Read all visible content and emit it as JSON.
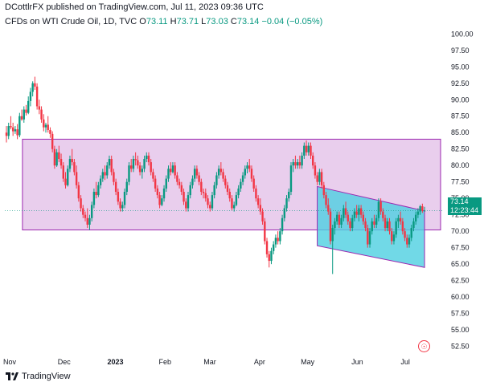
{
  "header": {
    "published_line": "DCottlrFX published on TradingView.com, Jul 11, 2023 09:36 UTC"
  },
  "legend": {
    "symbol": "CFDs on WTI Crude Oil, 1D, TVC",
    "open_label": "O",
    "open_value": "73.11",
    "high_label": "H",
    "high_value": "73.71",
    "low_label": "L",
    "low_value": "73.03",
    "close_label": "C",
    "close_value": "73.14",
    "change": "−0.04 (−0.05%)"
  },
  "price_badge": {
    "price": "73.14",
    "countdown": "12:23:44"
  },
  "footer": {
    "brand": "TradingView"
  },
  "colors": {
    "up": "#089981",
    "down": "#f23645",
    "range_box_fill": "#e1bee7",
    "range_box_stroke": "#9c27b0",
    "channel_fill": "#4dd0e1",
    "channel_stroke": "#9c27b0"
  },
  "chart_data": {
    "type": "candlestick",
    "y_axis_ticks": [
      "100.00",
      "97.50",
      "95.00",
      "92.50",
      "90.00",
      "87.50",
      "85.00",
      "82.50",
      "80.00",
      "77.50",
      "75.00",
      "72.50",
      "70.00",
      "67.50",
      "65.00",
      "62.50",
      "60.00",
      "57.50",
      "55.00",
      "52.50"
    ],
    "x_axis_ticks": [
      "Nov",
      "Dec",
      "2023",
      "Feb",
      "Mar",
      "Apr",
      "May",
      "Jun",
      "Jul"
    ],
    "ylim": [
      50.5,
      101.5
    ],
    "x_range_days": [
      0,
      272
    ],
    "current_price": 73.14,
    "range_box": {
      "x0_day": 11,
      "x1_day": 272,
      "top": 84.0,
      "bottom": 70.2
    },
    "channel": {
      "x0_day": 195,
      "x1_day": 262,
      "upper_start": 76.8,
      "upper_end": 73.1,
      "lower_start": 67.8,
      "lower_end": 64.5
    },
    "candles": [
      [
        0,
        85,
        86,
        83.5,
        84.5
      ],
      [
        1,
        84.5,
        86.5,
        84,
        86
      ],
      [
        2,
        86,
        87.5,
        85.5,
        85.8
      ],
      [
        3,
        85.8,
        86.5,
        84.5,
        85.2
      ],
      [
        4,
        85.2,
        86,
        84.8,
        85.5
      ],
      [
        5,
        85.5,
        86.3,
        84,
        84.6
      ],
      [
        6,
        84.6,
        88,
        84.3,
        87.5
      ],
      [
        7,
        87.5,
        88.5,
        86.8,
        87
      ],
      [
        8,
        87,
        89,
        86.5,
        88.5
      ],
      [
        9,
        88.5,
        89.2,
        87.6,
        88
      ],
      [
        10,
        88,
        90.5,
        87.8,
        89.8
      ],
      [
        11,
        89.8,
        91.8,
        89,
        91.2
      ],
      [
        12,
        91.2,
        92.8,
        90.5,
        92.5
      ],
      [
        13,
        92.5,
        93.5,
        91.5,
        92
      ],
      [
        14,
        92,
        92.5,
        88.5,
        89
      ],
      [
        15,
        89,
        90,
        87.8,
        88.5
      ],
      [
        16,
        88.5,
        89,
        86.5,
        87
      ],
      [
        17,
        87,
        87.8,
        85.2,
        85.8
      ],
      [
        18,
        85.8,
        86.5,
        85,
        86.2
      ],
      [
        19,
        86.2,
        87.5,
        85,
        85.4
      ],
      [
        20,
        85.4,
        85.8,
        84.2,
        84.8
      ],
      [
        21,
        84.8,
        85.2,
        82,
        82.5
      ],
      [
        22,
        82.5,
        83,
        79.5,
        80
      ],
      [
        23,
        80,
        82.5,
        79.8,
        82
      ],
      [
        24,
        82,
        83,
        80.5,
        81
      ],
      [
        25,
        81,
        81.8,
        79.5,
        80
      ],
      [
        26,
        80,
        80.5,
        77.5,
        78
      ],
      [
        27,
        78,
        79,
        76.5,
        77
      ],
      [
        28,
        77,
        80,
        76.8,
        79.5
      ],
      [
        29,
        79.5,
        81.5,
        79,
        81
      ],
      [
        30,
        81,
        82.5,
        80,
        80.5
      ],
      [
        31,
        80.5,
        81,
        78.5,
        79
      ],
      [
        32,
        79,
        80,
        76.5,
        77
      ],
      [
        33,
        77,
        77.5,
        74.5,
        75
      ],
      [
        34,
        75,
        75.5,
        73,
        73.5
      ],
      [
        35,
        73.5,
        74,
        72,
        72.5
      ],
      [
        36,
        72.5,
        73,
        71.5,
        72
      ],
      [
        37,
        72,
        73.5,
        70.5,
        71
      ],
      [
        38,
        71,
        72.5,
        70.2,
        72
      ],
      [
        39,
        72,
        74.5,
        71.5,
        74
      ],
      [
        40,
        74,
        76.5,
        73.5,
        76
      ],
      [
        41,
        76,
        77.5,
        75,
        75.5
      ],
      [
        42,
        75.5,
        77.5,
        75.2,
        77
      ],
      [
        43,
        77,
        78.5,
        76.5,
        78
      ],
      [
        44,
        78,
        79.5,
        77.5,
        79
      ],
      [
        45,
        79,
        80,
        77.8,
        78.5
      ],
      [
        46,
        78.5,
        80.5,
        78,
        80
      ],
      [
        47,
        80,
        81.5,
        79.5,
        81
      ],
      [
        48,
        81,
        81.5,
        78.5,
        79
      ],
      [
        49,
        79,
        79.5,
        77,
        77.5
      ],
      [
        50,
        77.5,
        78,
        75.5,
        76
      ],
      [
        51,
        76,
        76.5,
        74,
        74.5
      ],
      [
        52,
        74.5,
        75,
        73,
        73.5
      ],
      [
        53,
        73.5,
        74.5,
        73,
        74
      ],
      [
        54,
        74,
        76.5,
        73.5,
        76
      ],
      [
        55,
        76,
        78,
        75.5,
        77.5
      ],
      [
        56,
        77.5,
        80.5,
        77,
        80
      ],
      [
        57,
        80,
        81,
        79,
        79.5
      ],
      [
        58,
        79.5,
        81.5,
        79,
        81
      ],
      [
        59,
        81,
        82,
        80,
        80.8
      ],
      [
        60,
        80.8,
        81.5,
        79.5,
        80
      ],
      [
        61,
        80,
        80.5,
        78.5,
        79
      ],
      [
        62,
        79,
        80,
        78,
        79.5
      ],
      [
        63,
        79.5,
        81.5,
        79,
        81
      ],
      [
        64,
        81,
        82,
        80.5,
        81.5
      ],
      [
        65,
        81.5,
        82,
        80,
        80.5
      ],
      [
        66,
        80.5,
        81,
        78.5,
        79
      ],
      [
        67,
        79,
        79.5,
        77.5,
        78
      ],
      [
        68,
        78,
        78.5,
        76,
        76.5
      ],
      [
        69,
        76.5,
        77,
        75,
        75.5
      ],
      [
        70,
        75.5,
        76,
        73.5,
        74
      ],
      [
        71,
        74,
        75.5,
        73.8,
        75
      ],
      [
        72,
        75,
        77,
        74.5,
        76.5
      ],
      [
        73,
        76.5,
        78.5,
        76,
        78
      ],
      [
        74,
        78,
        80,
        77.5,
        79.5
      ],
      [
        75,
        79.5,
        80.5,
        78.5,
        79
      ],
      [
        76,
        79,
        80.5,
        78.8,
        80
      ],
      [
        77,
        80,
        80.5,
        78,
        78.5
      ],
      [
        78,
        78.5,
        79,
        77,
        77.5
      ],
      [
        79,
        77.5,
        78,
        76.5,
        77
      ],
      [
        80,
        77,
        77.5,
        75.5,
        76
      ],
      [
        81,
        76,
        76.5,
        74,
        74.5
      ],
      [
        82,
        74.5,
        75,
        73,
        73.5
      ],
      [
        83,
        73.5,
        76,
        73,
        75.5
      ],
      [
        84,
        75.5,
        77.5,
        75,
        77
      ],
      [
        85,
        77,
        78.5,
        76.5,
        78
      ],
      [
        86,
        78,
        80,
        77.5,
        79.5
      ],
      [
        87,
        79.5,
        80,
        78,
        78.5
      ],
      [
        88,
        78.5,
        79,
        77,
        77.5
      ],
      [
        89,
        77.5,
        78,
        75.5,
        76
      ],
      [
        90,
        76,
        76.5,
        75,
        75.8
      ],
      [
        91,
        75.8,
        76.5,
        74.5,
        75
      ],
      [
        92,
        75,
        75.5,
        73.5,
        74
      ],
      [
        93,
        74,
        74.5,
        73,
        73.5
      ],
      [
        94,
        73.5,
        76,
        73.2,
        75.5
      ],
      [
        95,
        75.5,
        77.5,
        75,
        77
      ],
      [
        96,
        77,
        79,
        76.5,
        78.5
      ],
      [
        97,
        78.5,
        80,
        78,
        79.5
      ],
      [
        98,
        79.5,
        80.5,
        78.5,
        79
      ],
      [
        99,
        79,
        79.5,
        77.5,
        78
      ],
      [
        100,
        78,
        78.5,
        76.5,
        77
      ],
      [
        101,
        77,
        77.5,
        75.5,
        76
      ],
      [
        102,
        76,
        76.5,
        74.5,
        75
      ],
      [
        103,
        75,
        75.5,
        73.2,
        73.5
      ],
      [
        104,
        73.5,
        74.5,
        73,
        74
      ],
      [
        105,
        74,
        76,
        73.8,
        75.5
      ],
      [
        106,
        75.5,
        77,
        75,
        76.5
      ],
      [
        107,
        76.5,
        78,
        76,
        77.5
      ],
      [
        108,
        77.5,
        79,
        77,
        78.5
      ],
      [
        109,
        78.5,
        80,
        78,
        79.5
      ],
      [
        110,
        79.5,
        80.5,
        78.8,
        80
      ],
      [
        111,
        80,
        81,
        79,
        79.5
      ],
      [
        112,
        79.5,
        80,
        77.5,
        78
      ],
      [
        113,
        78,
        78.5,
        76,
        76.5
      ],
      [
        114,
        76.5,
        77,
        74.5,
        75
      ],
      [
        115,
        75,
        75.5,
        73.5,
        74
      ],
      [
        116,
        74,
        75,
        72.5,
        73
      ],
      [
        117,
        73,
        73.5,
        71,
        71.5
      ],
      [
        118,
        71.5,
        72,
        68,
        68.5
      ],
      [
        119,
        68.5,
        69,
        66,
        66.5
      ],
      [
        120,
        66.5,
        67,
        64.5,
        65.5
      ],
      [
        121,
        65.5,
        67.5,
        65,
        67
      ],
      [
        122,
        67,
        68.5,
        66.5,
        68
      ],
      [
        123,
        68,
        69.5,
        67.5,
        69
      ],
      [
        124,
        69,
        70,
        68,
        68.5
      ],
      [
        125,
        68.5,
        70.5,
        68,
        70
      ],
      [
        126,
        70,
        72.5,
        69.5,
        72
      ],
      [
        127,
        72,
        74,
        71.5,
        73.5
      ],
      [
        128,
        73.5,
        75.5,
        73,
        75
      ],
      [
        129,
        75,
        76.5,
        74.5,
        76
      ],
      [
        130,
        76,
        80.5,
        75.5,
        80
      ],
      [
        131,
        80,
        81,
        79,
        80.5
      ],
      [
        132,
        80.5,
        81.5,
        79.5,
        80
      ],
      [
        133,
        80,
        81,
        79.5,
        80.5
      ],
      [
        134,
        80.5,
        81.5,
        79.5,
        80
      ],
      [
        135,
        80,
        82,
        79.5,
        81.5
      ],
      [
        136,
        81.5,
        83.5,
        81,
        83
      ],
      [
        137,
        83,
        83.8,
        81.5,
        82
      ],
      [
        138,
        82,
        83.5,
        81.5,
        83
      ],
      [
        139,
        83,
        83.5,
        81,
        81.5
      ],
      [
        140,
        81.5,
        82,
        79.5,
        80
      ],
      [
        141,
        80,
        80.5,
        78,
        78.5
      ],
      [
        142,
        78.5,
        79,
        77,
        77.5
      ],
      [
        143,
        77.5,
        79.5,
        77,
        79
      ],
      [
        144,
        79,
        79.5,
        76.5,
        77
      ],
      [
        145,
        77,
        77.5,
        75,
        75.5
      ],
      [
        146,
        75.5,
        76,
        73.5,
        74
      ],
      [
        147,
        74,
        75,
        72.5,
        73
      ],
      [
        148,
        73,
        73.5,
        68,
        68.5
      ],
      [
        149,
        68.5,
        71,
        63.5,
        70.5
      ],
      [
        150,
        70.5,
        72,
        69.5,
        71.5
      ],
      [
        151,
        71.5,
        73,
        71,
        72.5
      ],
      [
        152,
        72.5,
        73,
        70.5,
        71
      ],
      [
        153,
        71,
        72.5,
        70.5,
        72
      ],
      [
        154,
        72,
        74,
        71.5,
        73.5
      ],
      [
        155,
        73.5,
        74.5,
        72,
        72.5
      ],
      [
        156,
        72.5,
        73,
        71,
        71.5
      ],
      [
        157,
        71.5,
        72,
        70,
        70.5
      ],
      [
        158,
        70.5,
        72.5,
        70,
        72
      ],
      [
        159,
        72,
        73.5,
        71.5,
        73
      ],
      [
        160,
        73,
        74,
        72,
        72.5
      ],
      [
        161,
        72.5,
        74,
        71.5,
        73.5
      ],
      [
        162,
        73.5,
        74,
        72,
        72.5
      ],
      [
        163,
        72.5,
        73,
        71,
        71.5
      ],
      [
        164,
        71.5,
        72,
        70,
        70.5
      ],
      [
        165,
        70.5,
        71,
        67.5,
        68
      ],
      [
        166,
        68,
        70.5,
        67.5,
        70
      ],
      [
        167,
        70,
        72,
        69.5,
        71.5
      ],
      [
        168,
        71.5,
        72.5,
        70.5,
        71
      ],
      [
        169,
        71,
        72.5,
        70.5,
        72
      ],
      [
        170,
        72,
        75,
        71.5,
        74.5
      ],
      [
        171,
        74.5,
        75,
        72.5,
        73
      ],
      [
        172,
        73,
        73.5,
        71.5,
        72
      ],
      [
        173,
        72,
        72.5,
        70,
        70.5
      ],
      [
        174,
        70.5,
        72,
        70,
        71.5
      ],
      [
        175,
        71.5,
        72,
        69.5,
        70
      ],
      [
        176,
        70,
        70.5,
        68,
        68.5
      ],
      [
        177,
        68.5,
        70,
        68,
        69.5
      ],
      [
        178,
        69.5,
        72,
        69,
        71.5
      ],
      [
        179,
        71.5,
        72.5,
        70.5,
        72
      ],
      [
        180,
        72,
        73,
        71,
        71.5
      ],
      [
        181,
        71.5,
        72,
        69.5,
        70
      ],
      [
        182,
        70,
        70.5,
        68.5,
        69
      ],
      [
        183,
        69,
        69.5,
        67.5,
        68
      ],
      [
        184,
        68,
        69.5,
        67.5,
        69
      ],
      [
        185,
        69,
        71,
        68.5,
        70.5
      ],
      [
        186,
        70.5,
        72,
        70,
        71.5
      ],
      [
        187,
        71.5,
        73,
        71,
        72.5
      ],
      [
        188,
        72.5,
        73.5,
        72,
        73
      ],
      [
        189,
        73,
        74,
        72.5,
        73.8
      ],
      [
        190,
        73.8,
        74.2,
        72.8,
        73.1
      ],
      [
        191,
        73.11,
        73.71,
        73.03,
        73.14
      ]
    ]
  }
}
